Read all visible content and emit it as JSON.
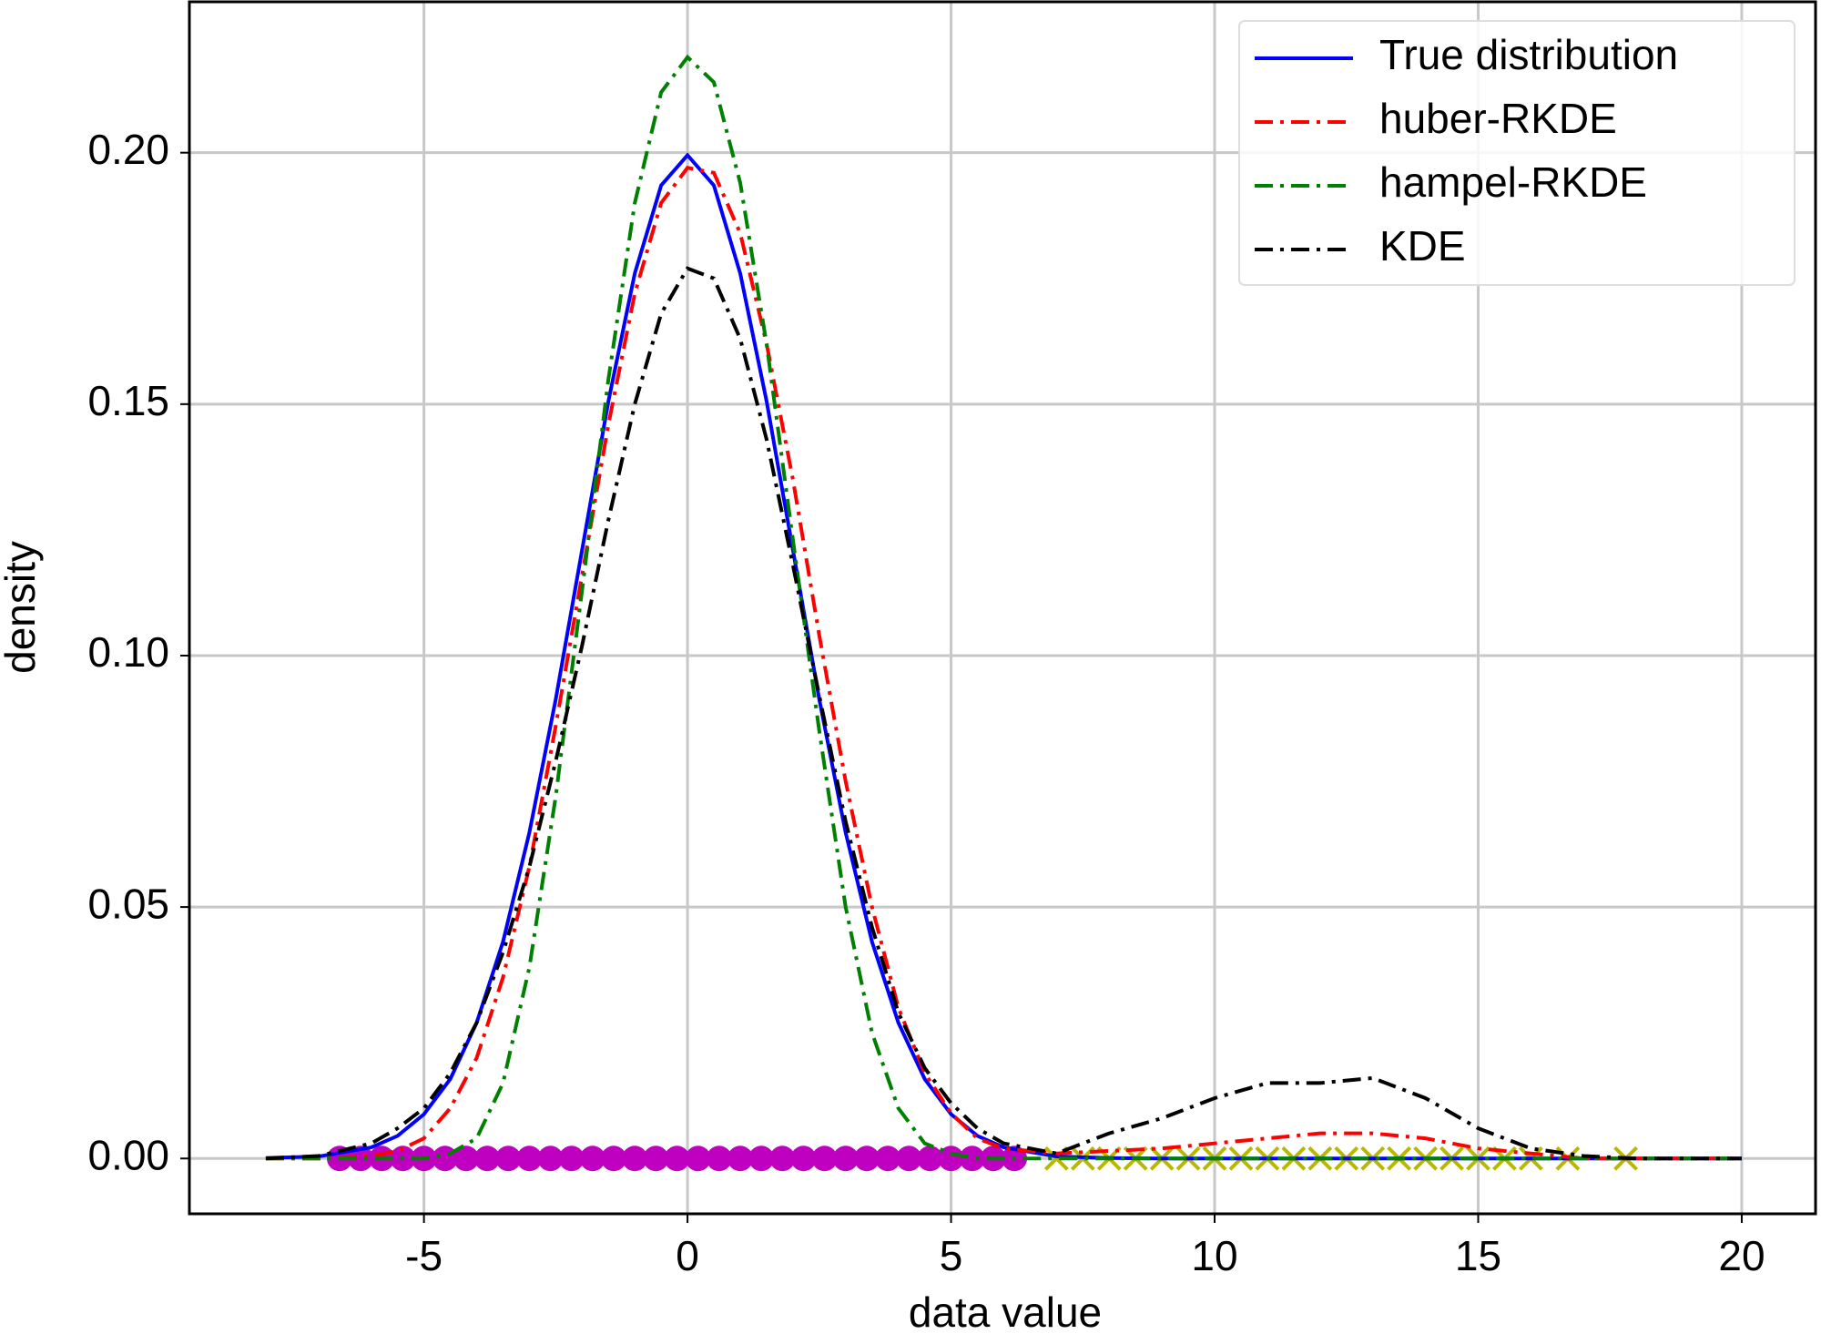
{
  "chart_data": {
    "type": "line",
    "x_label": "data value",
    "y_label": "density",
    "x": [
      -8,
      -7,
      -6,
      -5.5,
      -5,
      -4.5,
      -4,
      -3.5,
      -3,
      -2.5,
      -2,
      -1.5,
      -1,
      -0.5,
      0,
      0.5,
      1,
      1.5,
      2,
      2.5,
      3,
      3.5,
      4,
      4.5,
      5,
      5.5,
      6,
      7,
      8,
      9,
      10,
      11,
      12,
      13,
      14,
      15,
      16,
      17,
      18,
      19,
      20
    ],
    "series": [
      {
        "name": "True distribution",
        "color": "#0000ff",
        "linestyle": "solid",
        "values": [
          0.0001,
          0.0004,
          0.0022,
          0.0045,
          0.0088,
          0.0158,
          0.027,
          0.0431,
          0.0648,
          0.0913,
          0.121,
          0.1506,
          0.176,
          0.1935,
          0.1995,
          0.1935,
          0.176,
          0.1506,
          0.121,
          0.0913,
          0.0648,
          0.0431,
          0.027,
          0.0158,
          0.0088,
          0.0045,
          0.0022,
          0.0004,
          0.0001,
          0,
          0,
          0,
          0,
          0,
          0,
          0,
          0,
          0,
          0,
          0,
          0
        ]
      },
      {
        "name": "huber-RKDE",
        "color": "#ff0000",
        "linestyle": "dashdot",
        "values": [
          0,
          0,
          0.0005,
          0.0015,
          0.004,
          0.01,
          0.02,
          0.036,
          0.058,
          0.086,
          0.116,
          0.146,
          0.172,
          0.19,
          0.197,
          0.196,
          0.184,
          0.162,
          0.135,
          0.104,
          0.075,
          0.05,
          0.03,
          0.017,
          0.009,
          0.004,
          0.002,
          0.001,
          0.0015,
          0.002,
          0.003,
          0.004,
          0.005,
          0.005,
          0.004,
          0.002,
          0.001,
          0,
          0,
          0,
          0
        ]
      },
      {
        "name": "hampel-RKDE",
        "color": "#008000",
        "linestyle": "dashdot",
        "values": [
          0,
          0,
          0,
          0,
          0,
          0.001,
          0.004,
          0.015,
          0.038,
          0.072,
          0.113,
          0.155,
          0.19,
          0.212,
          0.219,
          0.214,
          0.194,
          0.162,
          0.123,
          0.085,
          0.05,
          0.025,
          0.01,
          0.003,
          0.001,
          0,
          0,
          0,
          0,
          0,
          0,
          0,
          0,
          0,
          0,
          0,
          0,
          0,
          0,
          0,
          0
        ]
      },
      {
        "name": "KDE",
        "color": "#000000",
        "linestyle": "dashdot",
        "values": [
          0,
          0.0005,
          0.003,
          0.006,
          0.01,
          0.017,
          0.027,
          0.041,
          0.058,
          0.079,
          0.102,
          0.127,
          0.15,
          0.168,
          0.177,
          0.175,
          0.163,
          0.143,
          0.118,
          0.092,
          0.067,
          0.046,
          0.029,
          0.018,
          0.011,
          0.006,
          0.003,
          0.001,
          0.005,
          0.008,
          0.012,
          0.015,
          0.015,
          0.016,
          0.012,
          0.006,
          0.002,
          0.0005,
          0,
          0,
          0
        ]
      }
    ],
    "points": [
      {
        "color": "#c000c0",
        "marker": "o",
        "x": [
          -6.6,
          -6.2,
          -5.8,
          -5.4,
          -5,
          -4.6,
          -4.2,
          -3.8,
          -3.4,
          -3,
          -2.6,
          -2.2,
          -1.8,
          -1.4,
          -1,
          -0.6,
          -0.2,
          0.2,
          0.6,
          1,
          1.4,
          1.8,
          2.2,
          2.6,
          3,
          3.4,
          3.8,
          4.2,
          4.6,
          5,
          5.4,
          5.8,
          6.2
        ],
        "y": [
          0,
          0,
          0,
          0,
          0,
          0,
          0,
          0,
          0,
          0,
          0,
          0,
          0,
          0,
          0,
          0,
          0,
          0,
          0,
          0,
          0,
          0,
          0,
          0,
          0,
          0,
          0,
          0,
          0,
          0,
          0,
          0,
          0
        ]
      },
      {
        "color": "#b8b800",
        "marker": "x",
        "x": [
          7,
          7.5,
          8,
          8.5,
          9,
          9.5,
          10,
          10.5,
          11,
          11.5,
          12,
          12.5,
          13,
          13.5,
          14,
          14.5,
          15,
          15.5,
          16,
          16.7,
          17.8
        ],
        "y": [
          0,
          0,
          0,
          0,
          0,
          0,
          0,
          0,
          0,
          0,
          0,
          0,
          0,
          0,
          0,
          0,
          0,
          0,
          0,
          0,
          0
        ]
      }
    ],
    "xlim": [
      -9.45,
      21.4
    ],
    "ylim": [
      -0.011,
      0.23
    ],
    "xticks": [
      -5,
      0,
      5,
      10,
      15,
      20
    ],
    "yticks": [
      {
        "value": 0,
        "label": "0.00"
      },
      {
        "value": 0.05,
        "label": "0.05"
      },
      {
        "value": 0.1,
        "label": "0.10"
      },
      {
        "value": 0.15,
        "label": "0.15"
      },
      {
        "value": 0.2,
        "label": "0.20"
      }
    ],
    "grid": true,
    "legend": "upper right"
  }
}
